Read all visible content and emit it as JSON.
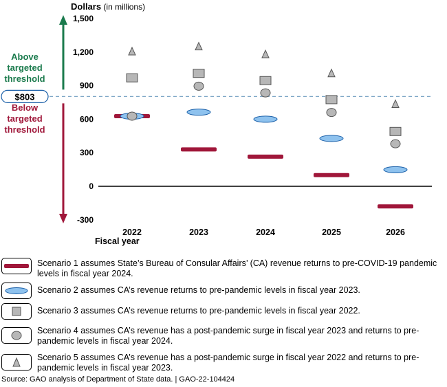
{
  "chart_data": {
    "type": "scatter",
    "title": "",
    "ylabel_bold": "Dollars",
    "ylabel_unit": "(in millions)",
    "xlabel": "Fiscal year",
    "categories": [
      "2022",
      "2023",
      "2024",
      "2025",
      "2026"
    ],
    "ylim": [
      -300,
      1500
    ],
    "yticks": [
      -300,
      0,
      300,
      600,
      900,
      1200,
      1500
    ],
    "ytick_labels": [
      "-300",
      "0",
      "300",
      "600",
      "900",
      "1,200",
      "1,500"
    ],
    "threshold": {
      "value": 803,
      "label": "$803"
    },
    "above_label": [
      "Above",
      "targeted",
      "threshold"
    ],
    "below_label": [
      "Below",
      "targeted",
      "threshold"
    ],
    "colors": {
      "above": "#1a7a4c",
      "below": "#a0173a",
      "threshold_line": "#7fa7c6",
      "scenario1": "#a0173a",
      "scenario2": "#8ec2ee",
      "grey": "#b7b7b7"
    },
    "series": [
      {
        "name": "Scenario 1",
        "marker": "bar",
        "values": [
          627,
          330,
          265,
          100,
          -180
        ]
      },
      {
        "name": "Scenario 2",
        "marker": "ellipse",
        "values": [
          627,
          663,
          600,
          428,
          148
        ]
      },
      {
        "name": "Scenario 3",
        "marker": "square",
        "values": [
          970,
          1010,
          945,
          775,
          490
        ]
      },
      {
        "name": "Scenario 4",
        "marker": "circle",
        "values": [
          627,
          895,
          835,
          660,
          380
        ]
      },
      {
        "name": "Scenario 5",
        "marker": "triangle",
        "values": [
          1205,
          1250,
          1180,
          1010,
          735
        ]
      }
    ]
  },
  "legend": [
    {
      "marker": "bar",
      "text": "Scenario 1 assumes State’s Bureau of Consular Affairs’ (CA) revenue returns to pre-COVID-19 pandemic levels in fiscal year 2024."
    },
    {
      "marker": "ellipse",
      "text": "Scenario 2 assumes CA’s revenue returns to pre-pandemic levels in fiscal year 2023."
    },
    {
      "marker": "square",
      "text": "Scenario 3 assumes CA’s revenue returns to pre-pandemic levels in fiscal year 2022."
    },
    {
      "marker": "circle",
      "text": "Scenario 4 assumes CA’s revenue has a post-pandemic surge in fiscal year 2023 and returns to pre-pandemic levels in fiscal year 2024."
    },
    {
      "marker": "triangle",
      "text": "Scenario 5 assumes CA’s revenue has a post-pandemic surge in fiscal year 2022 and returns to pre-pandemic levels in fiscal year 2023."
    }
  ],
  "source": "Source: GAO analysis of Department of State data.  |  GAO-22-104424"
}
